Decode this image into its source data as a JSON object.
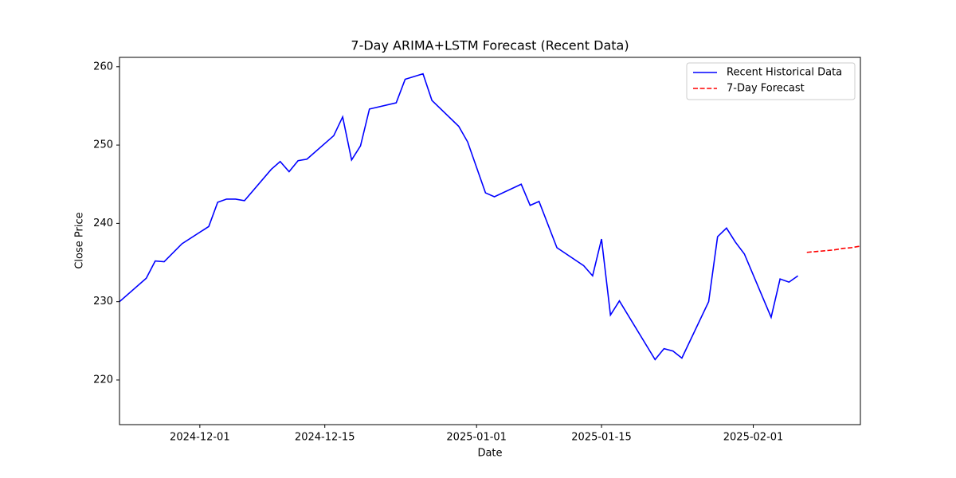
{
  "chart_data": {
    "type": "line",
    "title": "7-Day ARIMA+LSTM Forecast (Recent Data)",
    "x_label": "Date",
    "y_label": "Close Price",
    "xlim": [
      "2024-11-22",
      "2025-02-13"
    ],
    "xticks": [
      "2024-12-01",
      "2024-12-15",
      "2025-01-01",
      "2025-01-15",
      "2025-02-01"
    ],
    "ylim": [
      214.3,
      261.2
    ],
    "yticks": [
      220,
      230,
      240,
      250,
      260
    ],
    "grid": false,
    "legend": "upper right",
    "series": [
      {
        "name": "Recent Historical Data",
        "color": "#0000ff",
        "style": "solid",
        "x": [
          "2024-11-22",
          "2024-11-25",
          "2024-11-26",
          "2024-11-27",
          "2024-11-29",
          "2024-12-02",
          "2024-12-03",
          "2024-12-04",
          "2024-12-05",
          "2024-12-06",
          "2024-12-09",
          "2024-12-10",
          "2024-12-11",
          "2024-12-12",
          "2024-12-13",
          "2024-12-16",
          "2024-12-17",
          "2024-12-18",
          "2024-12-19",
          "2024-12-20",
          "2024-12-23",
          "2024-12-24",
          "2024-12-26",
          "2024-12-27",
          "2024-12-30",
          "2024-12-31",
          "2025-01-02",
          "2025-01-03",
          "2025-01-06",
          "2025-01-07",
          "2025-01-08",
          "2025-01-10",
          "2025-01-13",
          "2025-01-14",
          "2025-01-15",
          "2025-01-16",
          "2025-01-17",
          "2025-01-21",
          "2025-01-22",
          "2025-01-23",
          "2025-01-24",
          "2025-01-27",
          "2025-01-28",
          "2025-01-29",
          "2025-01-30",
          "2025-01-31",
          "2025-02-03",
          "2025-02-04",
          "2025-02-05",
          "2025-02-06"
        ],
        "values": [
          230.0,
          233.0,
          235.2,
          235.1,
          237.4,
          239.6,
          242.7,
          243.1,
          243.1,
          242.9,
          246.9,
          247.9,
          246.6,
          248.0,
          248.2,
          251.2,
          253.6,
          248.1,
          249.9,
          254.6,
          255.4,
          258.4,
          259.1,
          255.7,
          252.4,
          250.4,
          243.9,
          243.4,
          245.0,
          242.3,
          242.8,
          236.9,
          234.6,
          233.3,
          238.0,
          228.3,
          230.1,
          222.6,
          224.0,
          223.7,
          222.8,
          230.0,
          238.3,
          239.4,
          237.6,
          236.1,
          228.0,
          232.9,
          232.5,
          233.3
        ]
      },
      {
        "name": "7-Day Forecast",
        "color": "#ff0000",
        "style": "dashed",
        "x": [
          "2025-02-07",
          "2025-02-08",
          "2025-02-09",
          "2025-02-10",
          "2025-02-11",
          "2025-02-12",
          "2025-02-13"
        ],
        "values": [
          236.3,
          236.4,
          236.5,
          236.6,
          236.8,
          236.9,
          237.1
        ]
      }
    ]
  }
}
